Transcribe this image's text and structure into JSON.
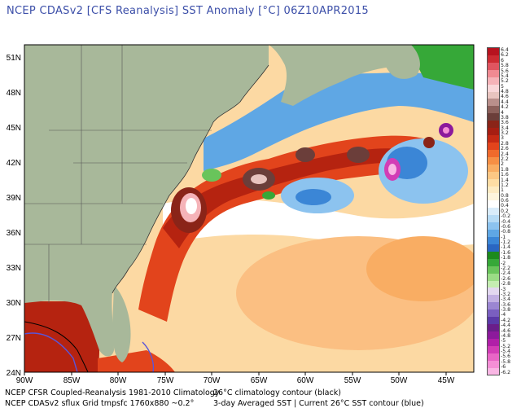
{
  "title": "NCEP CDASv2 [CFS Reanalysis] SST Anomaly [°C] 06Z10APR2015",
  "map": {
    "lon_labels": [
      "90W",
      "85W",
      "80W",
      "75W",
      "70W",
      "65W",
      "60W",
      "55W",
      "50W",
      "45W"
    ],
    "lat_labels": [
      "51N",
      "48N",
      "45N",
      "42N",
      "39N",
      "36N",
      "33N",
      "30N",
      "27N",
      "24N"
    ]
  },
  "footer": {
    "left1": "NCEP CFSR Coupled-Reanalysis 1981-2010 Climatology",
    "right1": "26°C climatology contour (black)",
    "left2": "NCEP CDASv2 sflux Grid tmpsfc 1760x880 ~0.2°",
    "right2": "3-day Averaged SST | Current 26°C SST contour (blue)"
  },
  "colorbar": {
    "labels": [
      "6.4",
      "6.2",
      "6",
      "5.8",
      "5.6",
      "5.4",
      "5.2",
      "5",
      "4.8",
      "4.6",
      "4.4",
      "4.2",
      "4",
      "3.8",
      "3.6",
      "3.4",
      "3.2",
      "3",
      "2.8",
      "2.6",
      "2.4",
      "2.2",
      "2",
      "1.8",
      "1.6",
      "1.4",
      "1.2",
      "1",
      "0.8",
      "0.6",
      "0.4",
      "0.2",
      "-0.2",
      "-0.4",
      "-0.6",
      "-0.8",
      "-1",
      "-1.2",
      "-1.4",
      "-1.6",
      "-1.8",
      "-2",
      "-2.2",
      "-2.4",
      "-2.6",
      "-2.8",
      "-3",
      "-3.2",
      "-3.4",
      "-3.6",
      "-3.8",
      "-4",
      "-4.2",
      "-4.4",
      "-4.6",
      "-4.8",
      "-5",
      "-5.2",
      "-5.4",
      "-5.6",
      "-5.8",
      "-6",
      "-6.2"
    ],
    "colors": [
      "#b7131f",
      "#cc2b32",
      "#e05560",
      "#f08a92",
      "#f5b3b8",
      "#f9d7d9",
      "#e8c4bf",
      "#b98f8b",
      "#8c605b",
      "#6b3e3a",
      "#8a2418",
      "#a61e12",
      "#c52a14",
      "#e2441c",
      "#f06a2c",
      "#f68f45",
      "#f9ad63",
      "#fcc784",
      "#fddda4",
      "#fdebc2",
      "#fef5dd",
      "#ffffff",
      "#d9ecfa",
      "#b6dbf5",
      "#8cc3ef",
      "#5fa7e4",
      "#3b86d6",
      "#2a66c2",
      "#1d8a1d",
      "#36a838",
      "#69c45b",
      "#9bdc86",
      "#c5edb2",
      "#e3d8f0",
      "#c2b0e3",
      "#9b86d2",
      "#7a5fc0",
      "#5b3aa8",
      "#6a1e8a",
      "#8c1a9c",
      "#b01fa8",
      "#d23db6",
      "#e866c6",
      "#f48fd6",
      "#f9b6e4"
    ]
  }
}
